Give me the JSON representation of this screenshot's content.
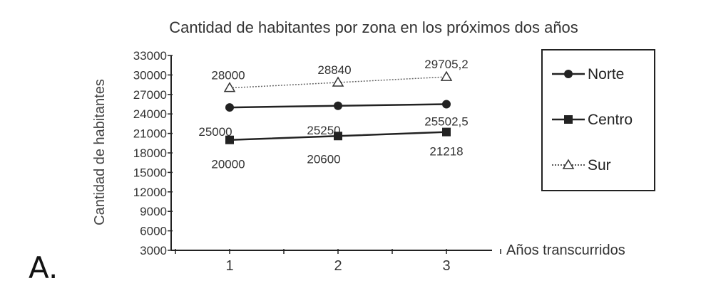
{
  "option_label": "A.",
  "chart_data": {
    "type": "line",
    "title": "Cantidad de habitantes por zona en los próximos dos años",
    "xlabel": "Años transcurridos",
    "ylabel": "Cantidad de habitantes",
    "categories": [
      "1",
      "2",
      "3"
    ],
    "ylim": [
      3000,
      33000
    ],
    "yticks": [
      3000,
      6000,
      9000,
      12000,
      15000,
      18000,
      21000,
      24000,
      27000,
      30000,
      33000
    ],
    "grid": false,
    "legend": "right",
    "series": [
      {
        "name": "Norte",
        "marker": "circle",
        "line": "solid",
        "values": [
          25000,
          25250,
          25502.5
        ],
        "labels": [
          "25000",
          "25250",
          "25502,5"
        ]
      },
      {
        "name": "Centro",
        "marker": "square",
        "line": "solid",
        "values": [
          20000,
          20600,
          21218
        ],
        "labels": [
          "20000",
          "20600",
          "21218"
        ]
      },
      {
        "name": "Sur",
        "marker": "triangle",
        "line": "dotted",
        "values": [
          28000,
          28840,
          29705.2
        ],
        "labels": [
          "28000",
          "28840",
          "29705,2"
        ]
      }
    ]
  }
}
